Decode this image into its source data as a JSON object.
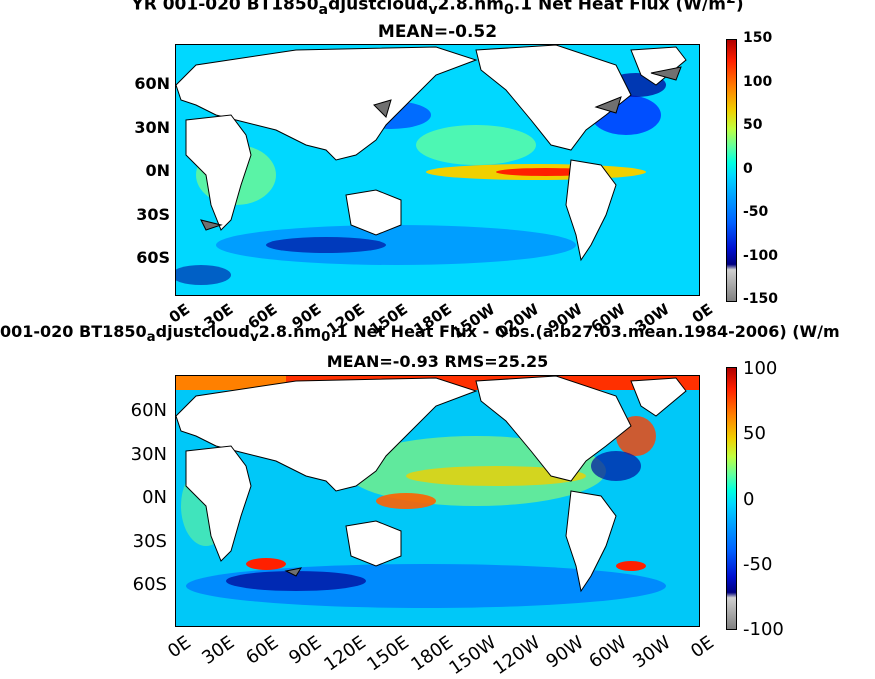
{
  "panel1": {
    "title_line1": "YR 001-020 BT1850",
    "title_sub1": "a",
    "title_part2": "djustcloud",
    "title_sub2": "v",
    "title_part3": "2.8.nm",
    "title_sub3": "0",
    "title_part4": ".1  Net Heat Flux (W/m",
    "title_sup": "2",
    "title_part5": ")",
    "title_line2": "MEAN=-0.52",
    "lat_labels": [
      "60N",
      "30N",
      "0N",
      "30S",
      "60S"
    ],
    "lon_labels": [
      "0E",
      "30E",
      "60E",
      "90E",
      "120E",
      "150E",
      "180E",
      "150W",
      "120W",
      "90W",
      "60W",
      "30W",
      "0E"
    ],
    "colorbar_ticks": [
      "150",
      "100",
      "50",
      "0",
      "-50",
      "-100",
      "-150"
    ]
  },
  "panel2": {
    "title_line1a": "001-020 BT1850",
    "title_sub1": "a",
    "title_part2": "djustcloud",
    "title_sub2": "v",
    "title_part3": "2.8.nm",
    "title_sub3": "0",
    "title_part4": ".1  Net Heat Flux - Obs.(a.b27.03.mean.1984-2006) (W/m",
    "title_line2": "MEAN=-0.93 RMS=25.25",
    "lat_labels": [
      "60N",
      "30N",
      "0N",
      "30S",
      "60S"
    ],
    "lon_labels": [
      "0E",
      "30E",
      "60E",
      "90E",
      "120E",
      "150E",
      "180E",
      "150W",
      "120W",
      "90W",
      "60W",
      "30W",
      "0E"
    ],
    "colorbar_ticks": [
      "100",
      "50",
      "0",
      "-50",
      "-100"
    ]
  },
  "colors": {
    "ocean": "#00d8ff",
    "land": "#ffffff",
    "coast": "#000000",
    "warm": "#f0d000",
    "hot": "#ff2000",
    "cool": "#0060ff",
    "deep": "#0010a0",
    "gray": "#707070"
  }
}
